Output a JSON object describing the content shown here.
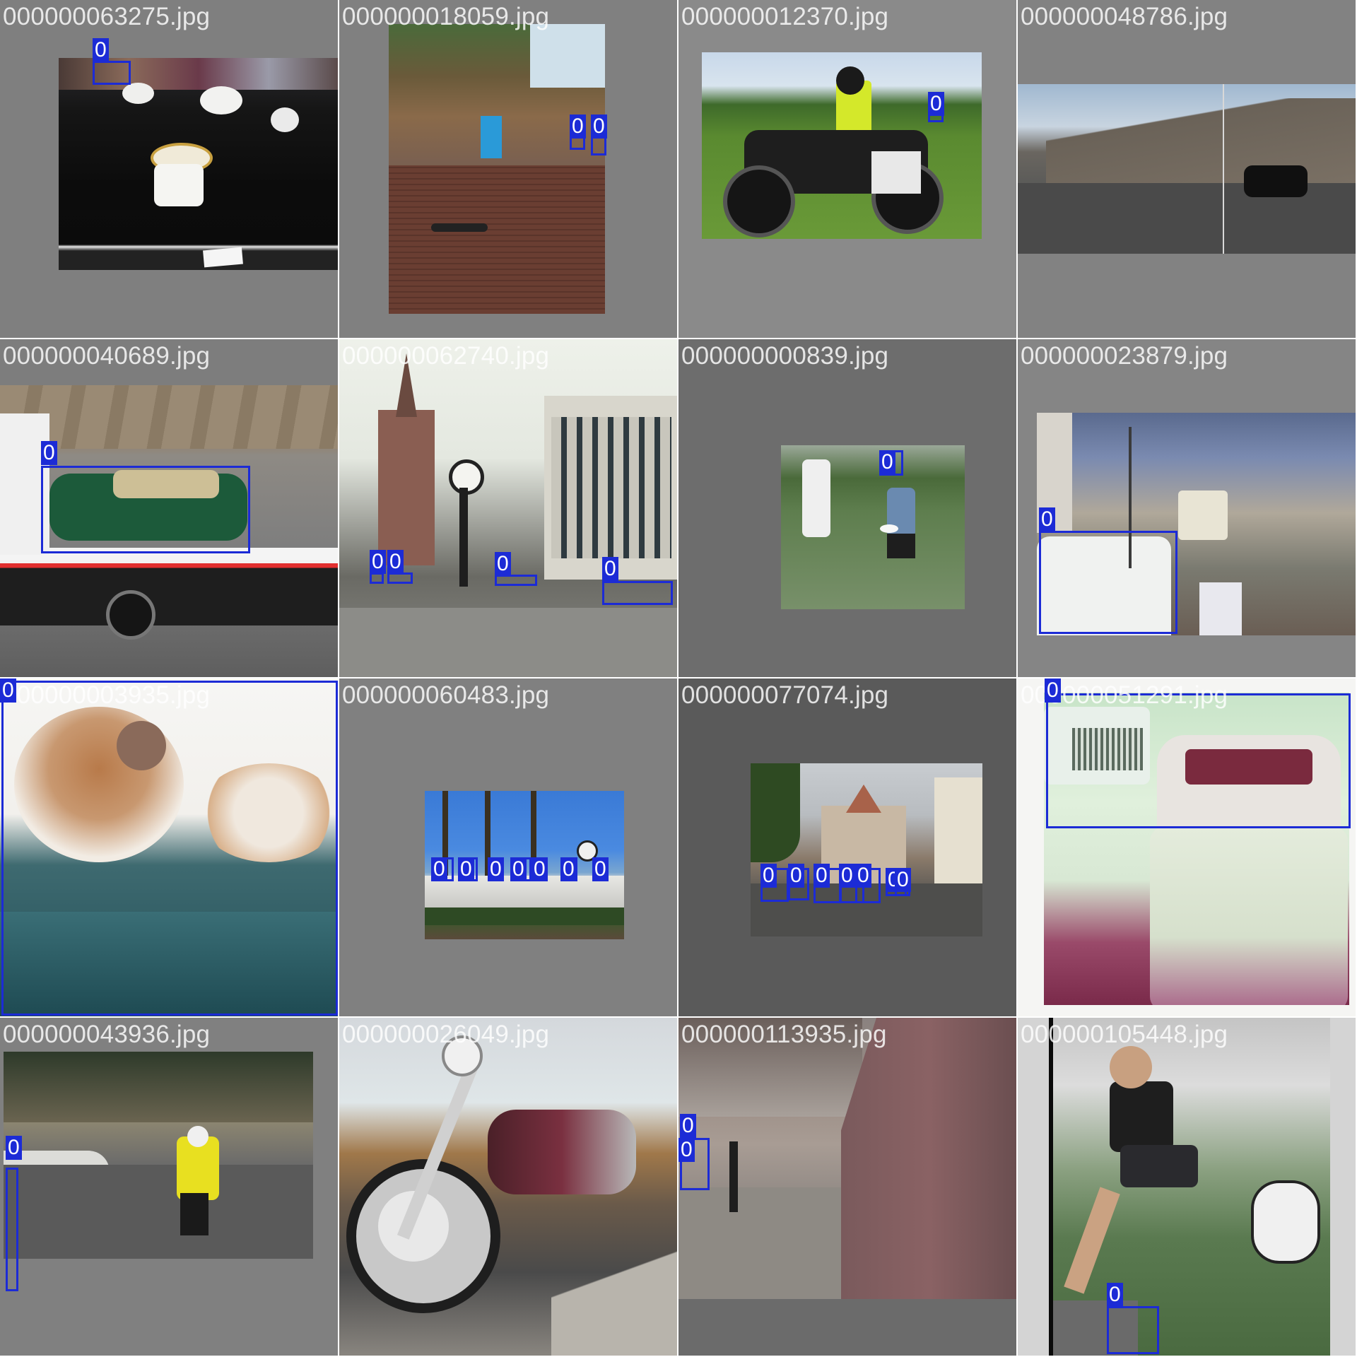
{
  "colors": {
    "box": "#1c2bd6",
    "label_bg": "#1c2bd6",
    "label_text": "#ffffff",
    "filename_text": "#ffffff",
    "letterbox_gray": "#808080"
  },
  "class_label": "0",
  "tiles": [
    {
      "filename": "000000063275.jpg",
      "letterbox": "#7f7f7f",
      "boxes": 1
    },
    {
      "filename": "000000018059.jpg",
      "letterbox": "#808080",
      "boxes": 2
    },
    {
      "filename": "000000012370.jpg",
      "letterbox": "#8a8a8a",
      "boxes": 1
    },
    {
      "filename": "000000048786.jpg",
      "letterbox": "#828282",
      "boxes": 0
    },
    {
      "filename": "000000040689.jpg",
      "letterbox": "#7d7d7d",
      "boxes": 1
    },
    {
      "filename": "000000062740.jpg",
      "letterbox": "#e9ece6",
      "boxes": 4
    },
    {
      "filename": "000000000839.jpg",
      "letterbox": "#6d6d6d",
      "boxes": 1
    },
    {
      "filename": "000000023879.jpg",
      "letterbox": "#858585",
      "boxes": 1
    },
    {
      "filename": "000000003935.jpg",
      "letterbox": "#f3f3f1",
      "boxes": 1
    },
    {
      "filename": "000000060483.jpg",
      "letterbox": "#808080",
      "boxes": 8
    },
    {
      "filename": "000000077074.jpg",
      "letterbox": "#5a5a5a",
      "boxes": 7
    },
    {
      "filename": "000000051291.jpg",
      "letterbox": "#f5f5f3",
      "boxes": 1
    },
    {
      "filename": "000000043936.jpg",
      "letterbox": "#808080",
      "boxes": 1
    },
    {
      "filename": "000000026049.jpg",
      "letterbox": "#8a8a8a",
      "boxes": 0
    },
    {
      "filename": "000000113935.jpg",
      "letterbox": "#6b6b6b",
      "boxes": 2
    },
    {
      "filename": "000000105448.jpg",
      "letterbox": "#d4d4d4",
      "boxes": 1
    }
  ]
}
